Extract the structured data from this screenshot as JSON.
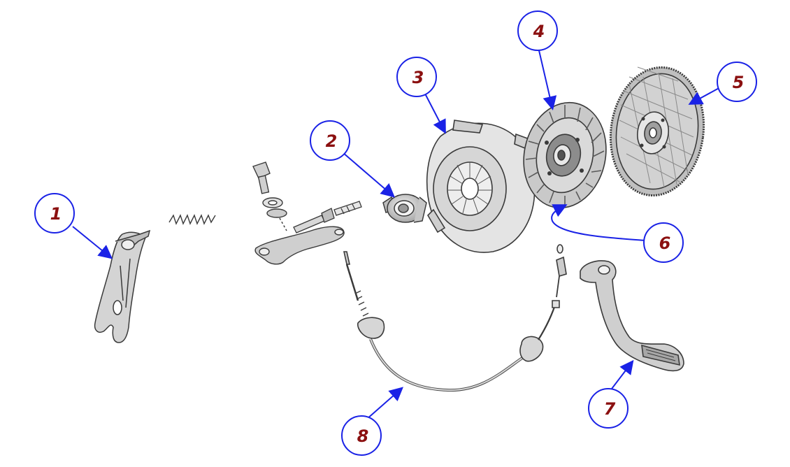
{
  "colors": {
    "callout_stroke": "#1a22e6",
    "callout_text": "#8b1010",
    "leader_line": "#1a22e6",
    "part_ink": "#3a3a3a",
    "part_fill": "#d9d9d9"
  },
  "callouts": [
    {
      "id": "1",
      "label": "1"
    },
    {
      "id": "2",
      "label": "2"
    },
    {
      "id": "3",
      "label": "3"
    },
    {
      "id": "4",
      "label": "4"
    },
    {
      "id": "5",
      "label": "5"
    },
    {
      "id": "6",
      "label": "6"
    },
    {
      "id": "7",
      "label": "7"
    },
    {
      "id": "8",
      "label": "8"
    }
  ]
}
